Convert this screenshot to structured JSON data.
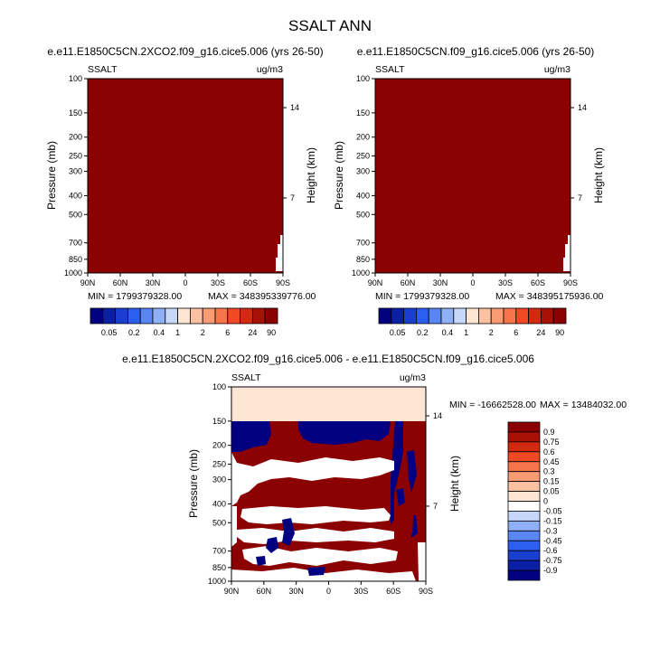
{
  "chart_data": {
    "type": "heatmap",
    "title": "SSALT ANN",
    "panels": [
      {
        "id": "case",
        "title": "e.e11.E1850C5CN.2XCO2.f09_g16.cice5.006 (yrs 26-50)",
        "variable": "SSALT",
        "units": "ug/m3",
        "xlabel": "",
        "ylabel": "Pressure (mb)",
        "y2label": "Height (km)",
        "xticks": [
          "90N",
          "60N",
          "30N",
          "0",
          "30S",
          "60S",
          "90S"
        ],
        "yticks": [
          "100",
          "150",
          "200",
          "250",
          "300",
          "400",
          "500",
          "700",
          "850",
          "1000"
        ],
        "y2ticks": [
          "14",
          "7"
        ],
        "min_label": "MIN = 1799379328.00",
        "max_label": "MAX = 348395339776.00",
        "fill_color": "#8b0000",
        "colorbar": {
          "colors": [
            "#000080",
            "#0a1fa3",
            "#1a3fd0",
            "#2a5ff0",
            "#5a85f5",
            "#8fb0f7",
            "#c5d8fa",
            "#fde5d3",
            "#fbc1a2",
            "#f99c73",
            "#f7744b",
            "#ef4a23",
            "#d12a10",
            "#a81105",
            "#8b0000"
          ],
          "labels": [
            "0.05",
            "0.2",
            "0.4",
            "1",
            "2",
            "6",
            "24",
            "90"
          ]
        }
      },
      {
        "id": "control",
        "title": "e.e11.E1850C5CN.f09_g16.cice5.006 (yrs 26-50)",
        "variable": "SSALT",
        "units": "ug/m3",
        "xlabel": "",
        "ylabel": "Pressure (mb)",
        "y2label": "Height (km)",
        "xticks": [
          "90N",
          "60N",
          "30N",
          "0",
          "30S",
          "60S",
          "90S"
        ],
        "yticks": [
          "100",
          "150",
          "200",
          "250",
          "300",
          "400",
          "500",
          "700",
          "850",
          "1000"
        ],
        "y2ticks": [
          "14",
          "7"
        ],
        "min_label": "MIN = 1799379328.00",
        "max_label": "MAX = 348395175936.00",
        "fill_color": "#8b0000",
        "colorbar": {
          "colors": [
            "#000080",
            "#0a1fa3",
            "#1a3fd0",
            "#2a5ff0",
            "#5a85f5",
            "#8fb0f7",
            "#c5d8fa",
            "#fde5d3",
            "#fbc1a2",
            "#f99c73",
            "#f7744b",
            "#ef4a23",
            "#d12a10",
            "#a81105",
            "#8b0000"
          ],
          "labels": [
            "0.05",
            "0.2",
            "0.4",
            "1",
            "2",
            "6",
            "24",
            "90"
          ]
        }
      },
      {
        "id": "difference",
        "title": "e.e11.E1850C5CN.2XCO2.f09_g16.cice5.006 - e.e11.E1850C5CN.f09_g16.cice5.006",
        "variable": "SSALT",
        "units": "ug/m3",
        "xlabel": "",
        "ylabel": "Pressure (mb)",
        "y2label": "Height (km)",
        "xticks": [
          "90N",
          "60N",
          "30N",
          "0",
          "30S",
          "60S",
          "90S"
        ],
        "yticks": [
          "100",
          "150",
          "200",
          "250",
          "300",
          "400",
          "500",
          "700",
          "850",
          "1000"
        ],
        "y2ticks": [
          "14",
          "7"
        ],
        "min_label": "MIN = -16662528.00",
        "max_label": "MAX = 13484032.00",
        "colorbar": {
          "colors": [
            "#8b0000",
            "#a81105",
            "#d12a10",
            "#ef4a23",
            "#f7744b",
            "#f99c73",
            "#fbc1a2",
            "#fde5d3",
            "#ffffff",
            "#c5d8fa",
            "#8fb0f7",
            "#5a85f5",
            "#2a5ff0",
            "#1a3fd0",
            "#0a1fa3",
            "#000080"
          ],
          "labels": [
            "0.9",
            "0.75",
            "0.6",
            "0.45",
            "0.3",
            "0.15",
            "0.05",
            "0",
            "-0.05",
            "-0.15",
            "-0.3",
            "-0.45",
            "-0.6",
            "-0.75",
            "-0.9"
          ]
        }
      }
    ]
  }
}
